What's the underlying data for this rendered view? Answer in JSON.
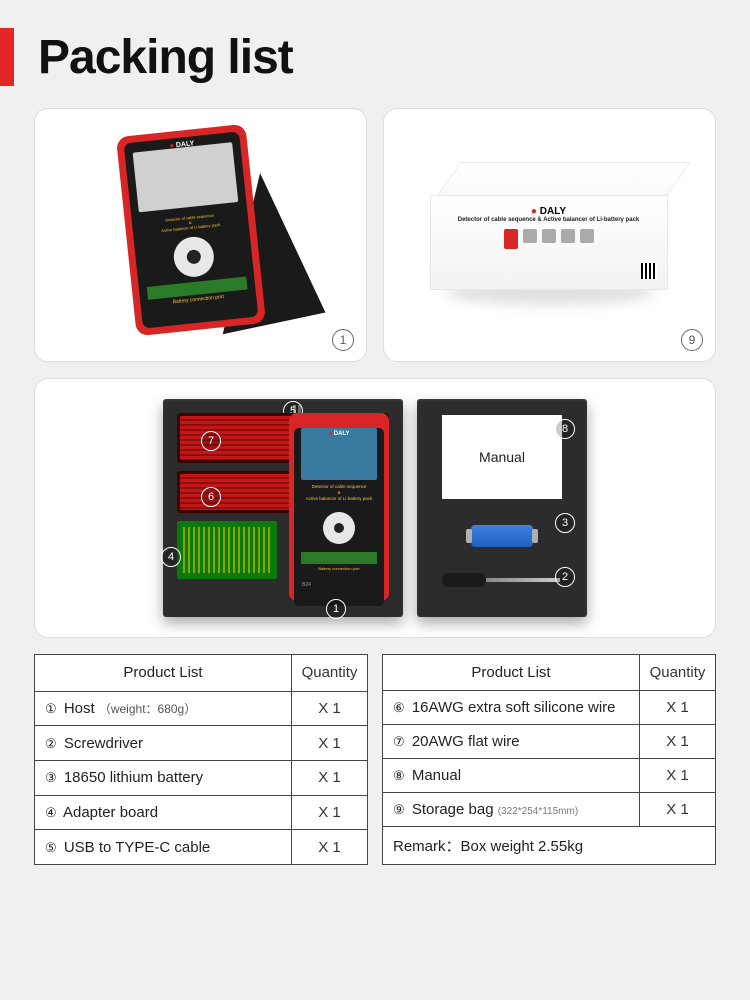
{
  "title": "Packing list",
  "cards": {
    "device_badge": "1",
    "box_badge": "9",
    "box_brand": "DALY",
    "box_subtitle": "Detector of cable sequence &\nActive balancer of Li-battery pack"
  },
  "dev_text": {
    "brand": "DALY",
    "line1": "Detector of cable sequence",
    "line2": "&",
    "line3": "Active balancer of Li-battery pack",
    "port": "Battery connection port",
    "model": "B24"
  },
  "foam_badges": {
    "b1": "1",
    "b2": "2",
    "b3": "3",
    "b4": "4",
    "b5": "5",
    "b6": "6",
    "b7": "7",
    "b8": "8"
  },
  "manual_label": "Manual",
  "table_left": {
    "h1": "Product List",
    "h2": "Quantity",
    "rows": [
      {
        "n": "①",
        "name": "Host",
        "note": "（weight：680g）",
        "qty": "X 1"
      },
      {
        "n": "②",
        "name": "Screwdriver",
        "qty": "X 1"
      },
      {
        "n": "③",
        "name": "18650 lithium battery",
        "qty": "X 1"
      },
      {
        "n": "④",
        "name": "Adapter board",
        "qty": "X 1"
      },
      {
        "n": "⑤",
        "name": "USB to TYPE-C cable",
        "qty": "X 1"
      }
    ]
  },
  "table_right": {
    "h1": "Product List",
    "h2": "Quantity",
    "rows": [
      {
        "n": "⑥",
        "name": "16AWG extra soft silicone wire",
        "qty": "X 1"
      },
      {
        "n": "⑦",
        "name": "20AWG flat wire",
        "qty": "X 1"
      },
      {
        "n": "⑧",
        "name": "Manual",
        "qty": "X 1"
      },
      {
        "n": "⑨",
        "name": "Storage bag",
        "note": "(322*254*115mm)",
        "qty": "X 1"
      }
    ],
    "remark": "Remark：Box weight 2.55kg"
  },
  "colors": {
    "accent": "#e32626",
    "device_red": "#d82626",
    "device_black": "#1a1a1a",
    "yellow": "#f9c233",
    "green": "#2a7a2a",
    "foam": "#2c2c2c",
    "bg": "#f0f0f0",
    "border": "#444"
  }
}
